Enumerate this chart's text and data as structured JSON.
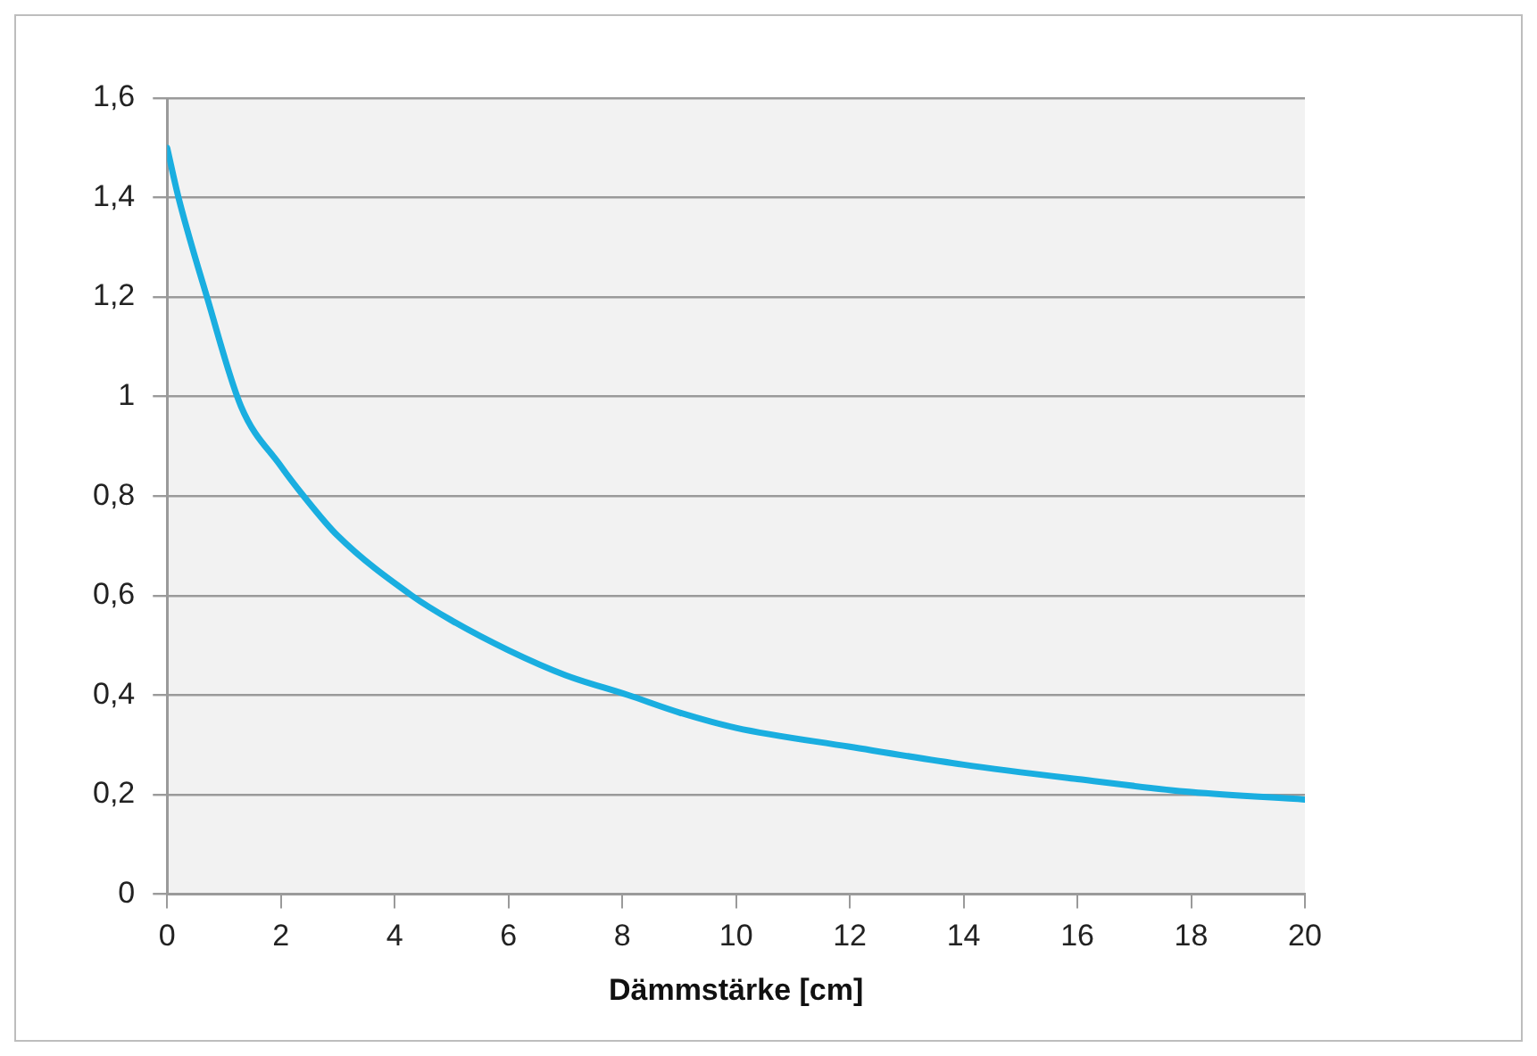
{
  "chart_data": {
    "type": "line",
    "xlabel": "Dämmstärke [cm]",
    "x": [
      0,
      0.2,
      0.7,
      1.3,
      2,
      2.4,
      3,
      4.3,
      5,
      6,
      7,
      8.1,
      9,
      10,
      12,
      14,
      16,
      18,
      20
    ],
    "series": [
      {
        "color": "#1aaee0",
        "values": [
          1.5,
          1.4,
          1.2,
          0.98,
          0.86,
          0.8,
          0.72,
          0.6,
          0.55,
          0.49,
          0.44,
          0.4,
          0.365,
          0.334,
          0.296,
          0.26,
          0.231,
          0.205,
          0.19
        ]
      }
    ],
    "xlim": [
      0,
      20
    ],
    "xticks": [
      0,
      2,
      4,
      6,
      8,
      10,
      12,
      14,
      16,
      18,
      20
    ],
    "ylim": [
      0,
      1.6
    ],
    "yticks": [
      {
        "value": 0,
        "label": "0"
      },
      {
        "value": 0.2,
        "label": "0,2"
      },
      {
        "value": 0.4,
        "label": "0,4"
      },
      {
        "value": 0.6,
        "label": "0,6"
      },
      {
        "value": 0.8,
        "label": "0,8"
      },
      {
        "value": 1,
        "label": "1"
      },
      {
        "value": 1.2,
        "label": "1,2"
      },
      {
        "value": 1.4,
        "label": "1,4"
      },
      {
        "value": 1.6,
        "label": "1,6"
      }
    ],
    "grid": "y",
    "legend": false,
    "marker": "none",
    "line_style": "solid"
  }
}
